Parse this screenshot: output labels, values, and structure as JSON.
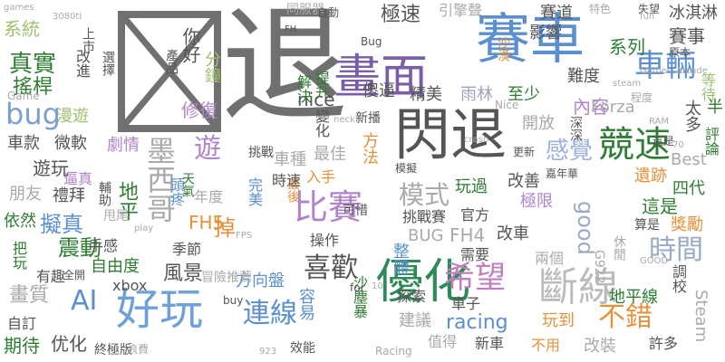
{
  "cloud": {
    "box_glyph_color": "#707070",
    "words": [
      {
        "text": "退",
        "color": "#707070"
      },
      {
        "text": "賽車",
        "color": "#5b8fcf"
      },
      {
        "text": "閃退",
        "color": "#555555"
      },
      {
        "text": "畫面",
        "color": "#7a5fa8"
      },
      {
        "text": "優化",
        "color": "#2e8b57"
      },
      {
        "text": "好玩",
        "color": "#6fa0d8"
      },
      {
        "text": "斷線",
        "color": "#bbbbbb"
      },
      {
        "text": "競速",
        "color": "#2e7d32"
      },
      {
        "text": "比賽",
        "color": "#b084cc"
      },
      {
        "text": "希望",
        "color": "#c080c0"
      },
      {
        "text": "車輛",
        "color": "#5b8fcf"
      },
      {
        "text": "墨西哥",
        "color": "#aaaaaa"
      },
      {
        "text": "喜歡",
        "color": "#555555"
      },
      {
        "text": "時間",
        "color": "#9aaac8"
      },
      {
        "text": "不錯",
        "color": "#e6913a"
      },
      {
        "text": "連線",
        "color": "#5b8fcf"
      },
      {
        "text": "bug",
        "color": "#7a9fd0"
      },
      {
        "text": "真實",
        "color": "#2e7d32"
      },
      {
        "text": "搖桿",
        "color": "#2e7d32"
      },
      {
        "text": "模式",
        "color": "#aaaaaa"
      },
      {
        "text": "感覺",
        "color": "#9bb0e0"
      },
      {
        "text": "震動",
        "color": "#2e7d32"
      },
      {
        "text": "擬真",
        "color": "#5b8fcf"
      },
      {
        "text": "AI",
        "color": "#5b8fcf"
      },
      {
        "text": "畫質",
        "color": "#aaaaaa"
      },
      {
        "text": "風景",
        "color": "#555555"
      },
      {
        "text": "期待",
        "color": "#2e7d32"
      },
      {
        "text": "优化",
        "color": "#555555"
      },
      {
        "text": "racing",
        "color": "#5b8fcf"
      },
      {
        "text": "FH5",
        "color": "#e6913a"
      },
      {
        "text": "FH4",
        "color": "#aaaaaa"
      },
      {
        "text": "BUG",
        "color": "#aaaaaa"
      },
      {
        "text": "good",
        "color": "#9aaac8"
      },
      {
        "text": "極速",
        "color": "#555555"
      },
      {
        "text": "冰淇淋",
        "color": "#555555"
      },
      {
        "text": "系統",
        "color": "#a0c070"
      },
      {
        "text": "系列",
        "color": "#2e7d32"
      },
      {
        "text": "賽事",
        "color": "#555555"
      },
      {
        "text": "內容",
        "color": "#b084cc"
      },
      {
        "text": "nice",
        "color": "#555555"
      },
      {
        "text": "Forza",
        "color": "#aaaaaa"
      },
      {
        "text": "精美",
        "color": "#555555"
      },
      {
        "text": "傻逼",
        "color": "#555555"
      },
      {
        "text": "至少",
        "color": "#2e7d32"
      },
      {
        "text": "雨林",
        "color": "#a0a0c0"
      },
      {
        "text": "開放",
        "color": "#aaaaaa"
      },
      {
        "text": "最佳",
        "color": "#aaaaaa"
      },
      {
        "text": "車種",
        "color": "#aaaaaa"
      },
      {
        "text": "方法",
        "color": "#e6913a"
      },
      {
        "text": "玩過",
        "color": "#2e7d32"
      },
      {
        "text": "改善",
        "color": "#555555"
      },
      {
        "text": "極限",
        "color": "#b084cc"
      },
      {
        "text": "遺跡",
        "color": "#e6913a"
      },
      {
        "text": "四代",
        "color": "#2e7d32"
      },
      {
        "text": "這是",
        "color": "#2e7d32"
      },
      {
        "text": "遊玩",
        "color": "#555555"
      },
      {
        "text": "微軟",
        "color": "#555555"
      },
      {
        "text": "車款",
        "color": "#555555"
      },
      {
        "text": "朋友",
        "color": "#aaaaaa"
      },
      {
        "text": "禮拜",
        "color": "#555555"
      },
      {
        "text": "依然",
        "color": "#2e7d32"
      },
      {
        "text": "劇情",
        "color": "#b084cc"
      },
      {
        "text": "漫遊",
        "color": "#a0c070"
      },
      {
        "text": "官方",
        "color": "#555555"
      },
      {
        "text": "挑戰賽",
        "color": "#555555"
      },
      {
        "text": "改車",
        "color": "#555555"
      },
      {
        "text": "兩個",
        "color": "#aaaaaa"
      },
      {
        "text": "需要",
        "color": "#555555"
      },
      {
        "text": "整體",
        "color": "#5b8fcf"
      },
      {
        "text": "操作",
        "color": "#555555"
      },
      {
        "text": "季節",
        "color": "#555555"
      },
      {
        "text": "自由度",
        "color": "#2e7d32"
      },
      {
        "text": "手感",
        "color": "#555555"
      },
      {
        "text": "xbox",
        "color": "#555555"
      },
      {
        "text": "把玩",
        "color": "#2e7d32"
      },
      {
        "text": "有趣",
        "color": "#555555"
      },
      {
        "text": "全開",
        "color": "#555555"
      },
      {
        "text": "自訂",
        "color": "#555555"
      },
      {
        "text": "方向盤",
        "color": "#5b8fcf"
      },
      {
        "text": "建議",
        "color": "#aaaaaa"
      },
      {
        "text": "探索",
        "color": "#555555"
      },
      {
        "text": "車子",
        "color": "#555555"
      },
      {
        "text": "玩到",
        "color": "#e6913a"
      },
      {
        "text": "值得",
        "color": "#aaaaaa"
      },
      {
        "text": "新車",
        "color": "#555555"
      },
      {
        "text": "不用",
        "color": "#e6913a"
      },
      {
        "text": "改裝",
        "color": "#aaaaaa"
      },
      {
        "text": "許多",
        "color": "#555555"
      },
      {
        "text": "Steam",
        "color": "#aaaaaa"
      },
      {
        "text": "調校",
        "color": "#555555"
      },
      {
        "text": "地平線",
        "color": "#2e7d32"
      },
      {
        "text": "算是",
        "color": "#555555"
      },
      {
        "text": "獎勵",
        "color": "#e6913a"
      },
      {
        "text": "G922",
        "color": "#aaaaaa"
      },
      {
        "text": "休閒",
        "color": "#aaaaaa"
      },
      {
        "text": "引擎聲",
        "color": "#aaaaaa"
      },
      {
        "text": "賽道",
        "color": "#555555"
      },
      {
        "text": "影響",
        "color": "#555555"
      },
      {
        "text": "難度",
        "color": "#555555"
      },
      {
        "text": "評論",
        "color": "#2e7d32"
      },
      {
        "text": "太多",
        "color": "#555555"
      },
      {
        "text": "等待",
        "color": "#a0c070"
      },
      {
        "text": "Best",
        "color": "#aaaaaa"
      },
      {
        "text": "嘉年華",
        "color": "#555555"
      },
      {
        "text": "深深",
        "color": "#555555"
      },
      {
        "text": "程度",
        "color": "#aaaaaa"
      },
      {
        "text": "入手",
        "color": "#e6913a"
      },
      {
        "text": "可惜",
        "color": "#555555"
      },
      {
        "text": "挑戰",
        "color": "#555555"
      },
      {
        "text": "新播",
        "color": "#555555"
      },
      {
        "text": "解決",
        "color": "#2e7d32"
      },
      {
        "text": "提升",
        "color": "#2e7d32"
      },
      {
        "text": "修復",
        "color": "#b084cc"
      },
      {
        "text": "分鐘",
        "color": "#a0c070"
      },
      {
        "text": "你好",
        "color": "#555555"
      },
      {
        "text": "遊",
        "color": "#b084cc"
      },
      {
        "text": "掉",
        "color": "#e6913a"
      },
      {
        "text": "上市",
        "color": "#555555"
      },
      {
        "text": "產品",
        "color": "#555555"
      },
      {
        "text": "逼真",
        "color": "#b084cc"
      },
      {
        "text": "年度",
        "color": "#aaaaaa"
      },
      {
        "text": "地平",
        "color": "#2e7d32"
      },
      {
        "text": "改進",
        "color": "#555555"
      },
      {
        "text": "同服器",
        "color": "#aaaaaa"
      },
      {
        "text": "這是",
        "color": "#555555"
      },
      {
        "text": "頭疼",
        "color": "#5b8fcf"
      },
      {
        "text": "變化",
        "color": "#555555"
      },
      {
        "text": "容易",
        "color": "#5b8fcf"
      },
      {
        "text": "沙塵暴",
        "color": "#2e7d32"
      },
      {
        "text": "冒險推薦",
        "color": "#aaaaaa"
      },
      {
        "text": "效能",
        "color": "#555555"
      },
      {
        "text": "終極版",
        "color": "#555555"
      },
      {
        "text": "Game",
        "color": "#aaaaaa"
      },
      {
        "text": "Nice",
        "color": "#aaaaaa"
      },
      {
        "text": "fun",
        "color": "#aaaaaa"
      },
      {
        "text": "buy",
        "color": "#555555"
      },
      {
        "text": "steam",
        "color": "#aaaaaa"
      },
      {
        "text": "Games",
        "color": "#aaaaaa"
      },
      {
        "text": "Arcade",
        "color": "#aaaaaa"
      },
      {
        "text": "Racing",
        "color": "#aaaaaa"
      },
      {
        "text": "games",
        "color": "#aaaaaa"
      },
      {
        "text": "3080ti",
        "color": "#aaaaaa"
      },
      {
        "text": "FPS",
        "color": "#aaaaaa"
      },
      {
        "text": "GOOD",
        "color": "#aaaaaa"
      },
      {
        "text": "RAM",
        "color": "#aaaaaa"
      },
      {
        "text": "923",
        "color": "#aaaaaa"
      },
      {
        "text": "70",
        "color": "#aaaaaa"
      },
      {
        "text": "10",
        "color": "#aaaaaa"
      },
      {
        "text": "Bug",
        "color": "#555555"
      },
      {
        "text": "play",
        "color": "#aaaaaa"
      },
      {
        "text": "crash",
        "color": "#aaaaaa"
      },
      {
        "text": "neck",
        "color": "#aaaaaa"
      },
      {
        "text": "for",
        "color": "#555555"
      },
      {
        "text": "FH",
        "color": "#555555"
      },
      {
        "text": "最後",
        "color": "#e6913a"
      },
      {
        "text": "時速",
        "color": "#555555"
      },
      {
        "text": "完美",
        "color": "#5b8fcf"
      },
      {
        "text": "天氣",
        "color": "#2e7d32"
      },
      {
        "text": "輔助",
        "color": "#555555"
      },
      {
        "text": "甩尾",
        "color": "#aaaaaa"
      },
      {
        "text": "自動",
        "color": "#555555"
      },
      {
        "text": "失望",
        "color": "#555555"
      },
      {
        "text": "更新",
        "color": "#555555"
      },
      {
        "text": "浪費",
        "color": "#aaaaaa"
      },
      {
        "text": "半",
        "color": "#2e7d32"
      },
      {
        "text": "模擬",
        "color": "#555555"
      },
      {
        "text": "特色",
        "color": "#aaaaaa"
      },
      {
        "text": "原本",
        "color": "#555555"
      },
      {
        "text": "沙漠",
        "color": "#e6913a"
      },
      {
        "text": "選擇",
        "color": "#555555"
      }
    ]
  }
}
